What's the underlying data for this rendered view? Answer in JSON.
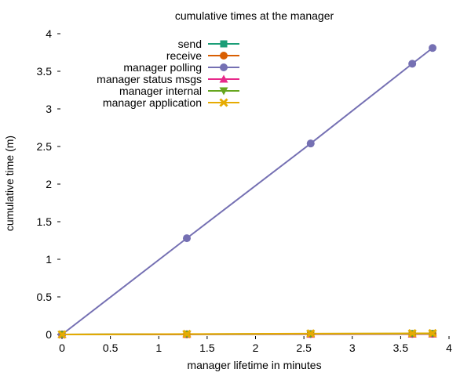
{
  "chart_data": {
    "type": "line",
    "title": "cumulative times at the manager",
    "xlabel": "manager lifetime in minutes",
    "ylabel": "cumulative time (m)",
    "xlim": [
      0,
      4
    ],
    "ylim": [
      0,
      4
    ],
    "x_ticks": [
      "0",
      "0.5",
      "1",
      "1.5",
      "2",
      "2.5",
      "3",
      "3.5",
      "4"
    ],
    "y_ticks": [
      "0",
      "0.5",
      "1",
      "1.5",
      "2",
      "2.5",
      "3",
      "3.5",
      "4"
    ],
    "grid": false,
    "legend_position": "top-center",
    "x": [
      0,
      1.29,
      2.57,
      3.62,
      3.83
    ],
    "series": [
      {
        "name": "send",
        "color": "#1b9e77",
        "marker": "square",
        "values": [
          0,
          0.005,
          0.01,
          0.012,
          0.013
        ]
      },
      {
        "name": "receive",
        "color": "#d95f02",
        "marker": "circle",
        "values": [
          0,
          0.003,
          0.006,
          0.008,
          0.009
        ]
      },
      {
        "name": "manager polling",
        "color": "#7570b3",
        "marker": "circle",
        "values": [
          0,
          1.28,
          2.54,
          3.6,
          3.81
        ]
      },
      {
        "name": "manager status msgs",
        "color": "#e7298a",
        "marker": "triangle-up",
        "values": [
          0,
          0.002,
          0.004,
          0.005,
          0.006
        ]
      },
      {
        "name": "manager internal",
        "color": "#66a61e",
        "marker": "triangle-down",
        "values": [
          0,
          0.004,
          0.008,
          0.01,
          0.011
        ]
      },
      {
        "name": "manager application",
        "color": "#e6ab02",
        "marker": "x",
        "values": [
          0,
          0.006,
          0.012,
          0.015,
          0.016
        ]
      }
    ]
  }
}
